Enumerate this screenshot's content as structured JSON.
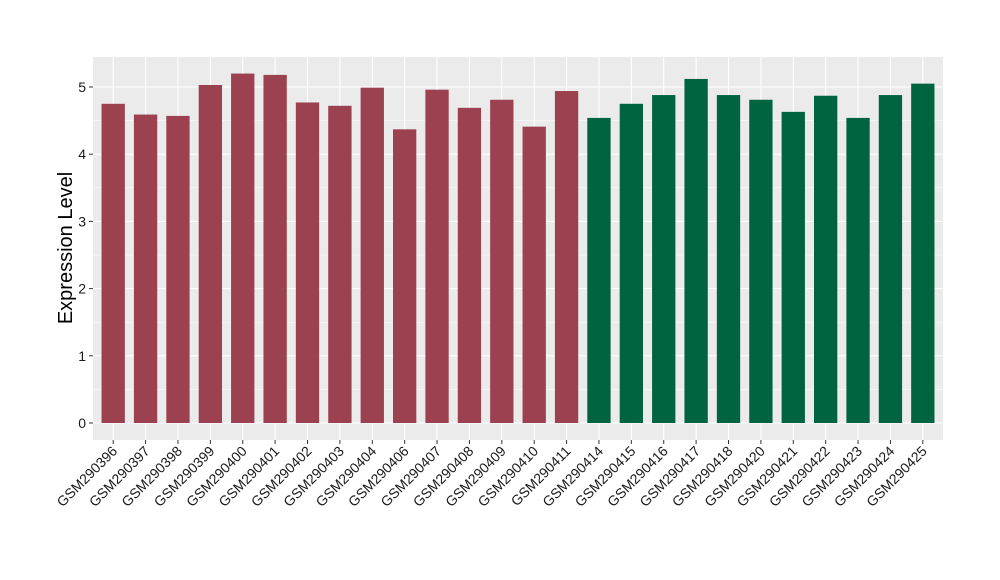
{
  "chart_data": {
    "type": "bar",
    "title": "",
    "xlabel": "",
    "ylabel": "Expression Level",
    "ylim": [
      0,
      5.5
    ],
    "yticks": [
      0,
      1,
      2,
      3,
      4,
      5
    ],
    "grid": true,
    "legend": "none",
    "colors": {
      "group1": "#9b4150",
      "group2": "#006441",
      "panel": "#ebebeb",
      "grid": "#ffffff"
    },
    "categories": [
      "GSM290396",
      "GSM290397",
      "GSM290398",
      "GSM290399",
      "GSM290400",
      "GSM290401",
      "GSM290402",
      "GSM290403",
      "GSM290404",
      "GSM290406",
      "GSM290407",
      "GSM290408",
      "GSM290409",
      "GSM290410",
      "GSM290411",
      "GSM290414",
      "GSM290415",
      "GSM290416",
      "GSM290417",
      "GSM290418",
      "GSM290420",
      "GSM290421",
      "GSM290422",
      "GSM290423",
      "GSM290424",
      "GSM290425"
    ],
    "values": [
      4.75,
      4.59,
      4.57,
      5.03,
      5.2,
      5.18,
      4.77,
      4.72,
      4.99,
      4.37,
      4.96,
      4.69,
      4.81,
      4.41,
      4.94,
      4.54,
      4.75,
      4.88,
      5.12,
      4.88,
      4.81,
      4.63,
      4.87,
      4.54,
      4.88,
      5.05
    ],
    "groups": [
      "group1",
      "group1",
      "group1",
      "group1",
      "group1",
      "group1",
      "group1",
      "group1",
      "group1",
      "group1",
      "group1",
      "group1",
      "group1",
      "group1",
      "group1",
      "group2",
      "group2",
      "group2",
      "group2",
      "group2",
      "group2",
      "group2",
      "group2",
      "group2",
      "group2",
      "group2"
    ]
  }
}
